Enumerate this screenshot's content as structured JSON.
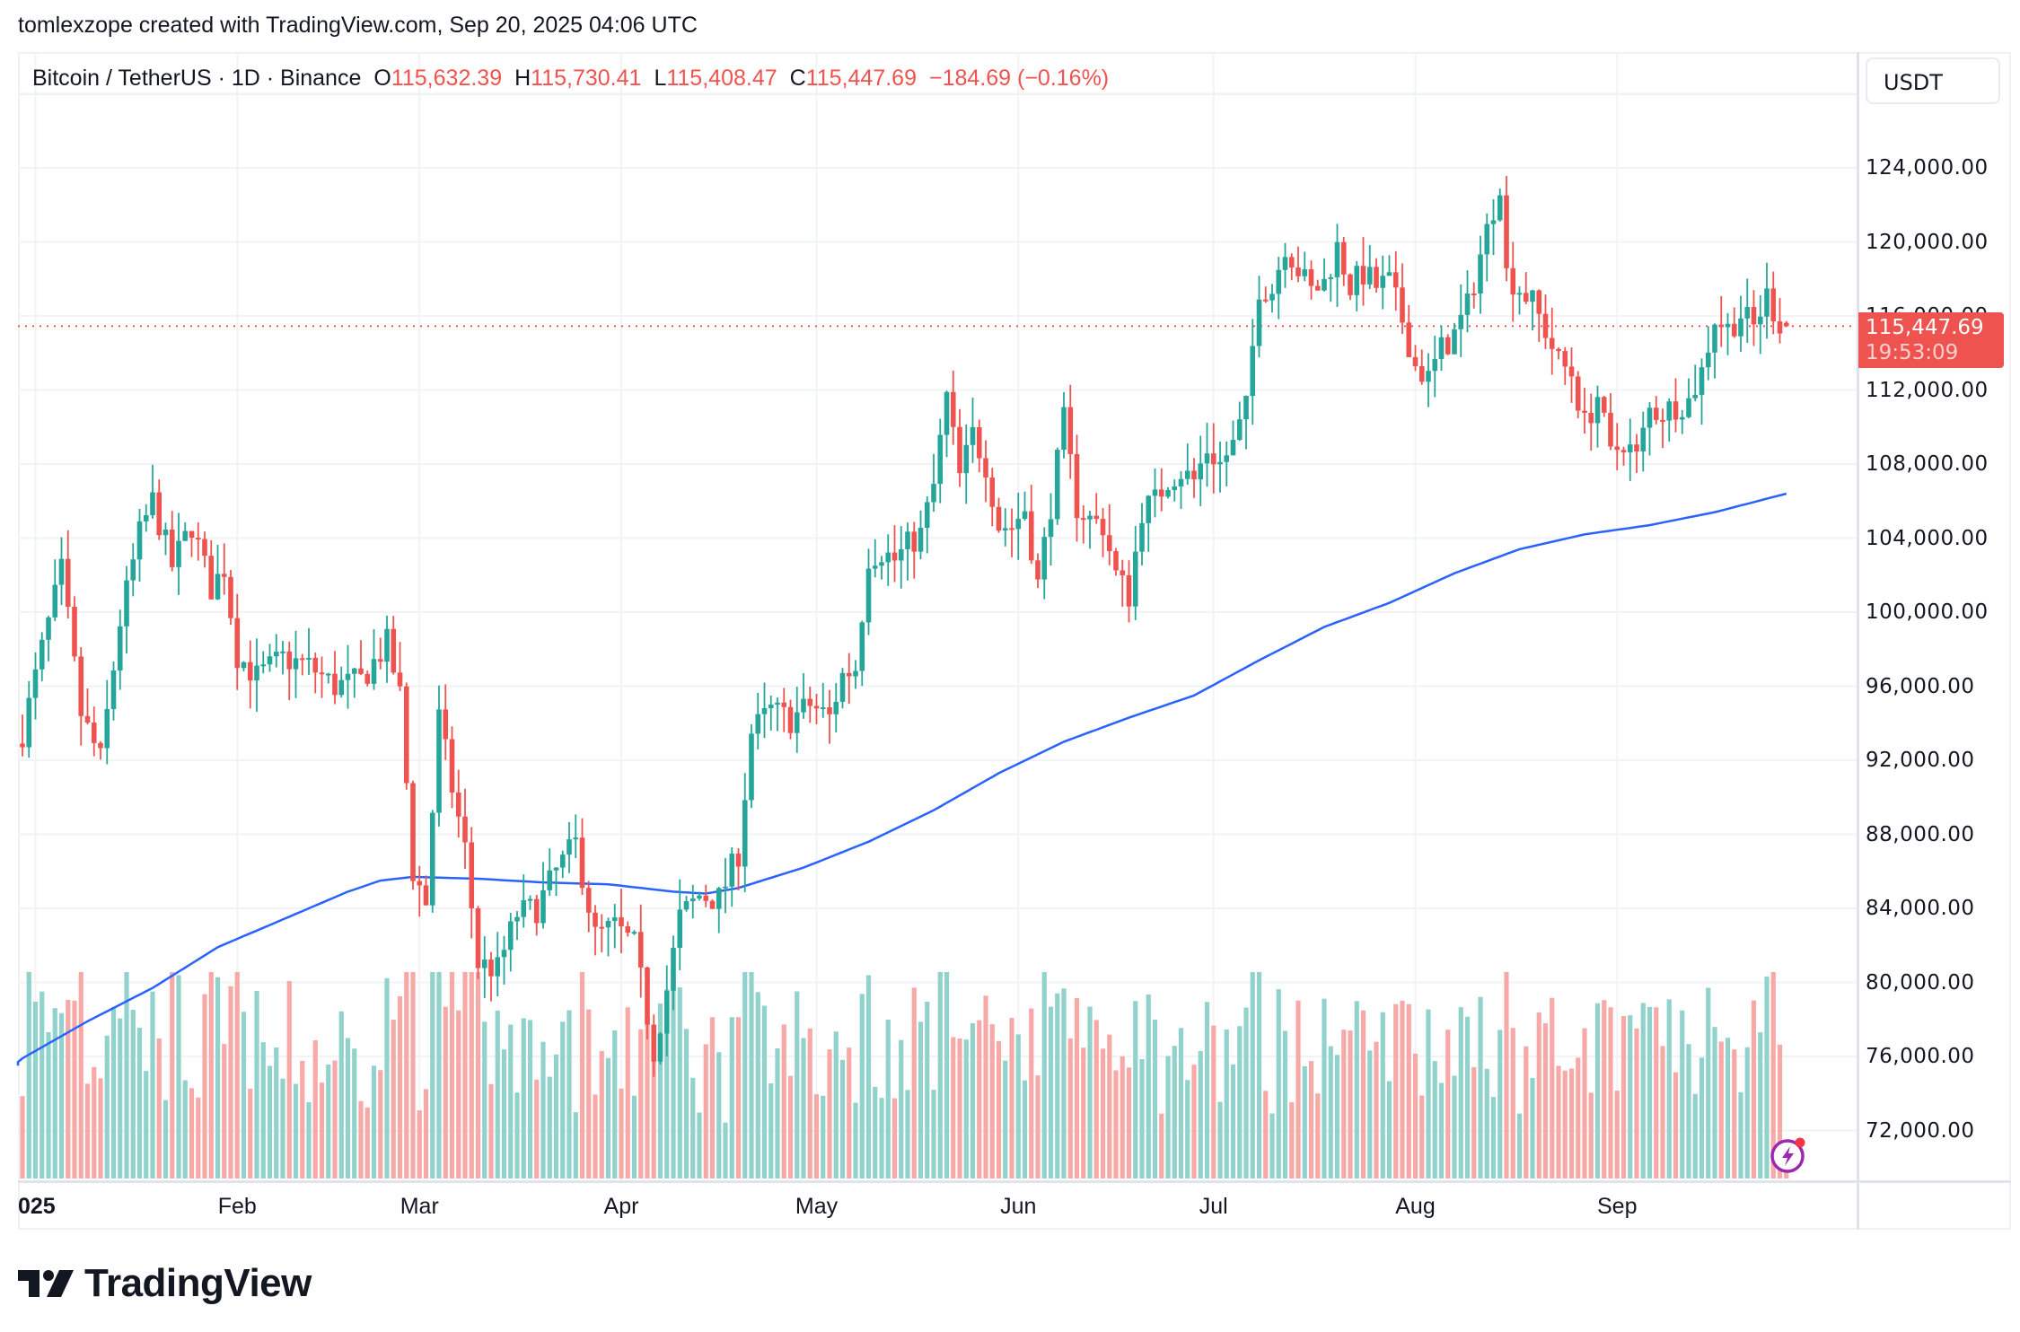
{
  "attribution": "tomlexzope created with TradingView.com, Sep 20, 2025 04:06 UTC",
  "legend": {
    "symbol": "Bitcoin / TetherUS · 1D · Binance",
    "open_label": "O",
    "open": "115,632.39",
    "high_label": "H",
    "high": "115,730.41",
    "low_label": "L",
    "low": "115,408.47",
    "close_label": "C",
    "close": "115,447.69",
    "change": "−184.69 (−0.16%)"
  },
  "currency_button": "USDT",
  "price_tag": {
    "price": "115,447.69",
    "countdown": "19:53:09"
  },
  "brand": {
    "logo_text": "TradingView"
  },
  "colors": {
    "up": "#26a69a",
    "down": "#ef5350",
    "up_vol": "#92d2cc",
    "down_vol": "#f7a9a7",
    "ma": "#2962ff",
    "grid": "#f2f3f5",
    "last_price": "#ef5350",
    "flash": "#9c27b0"
  },
  "chart_data": {
    "type": "candlestick",
    "title": "Bitcoin / TetherUS · 1D · Binance",
    "xlabel": "",
    "ylabel": "USDT",
    "ylim": [
      69000,
      126000
    ],
    "grid": true,
    "y_ticks": [
      "124,000.00",
      "120,000.00",
      "116,000.00",
      "112,000.00",
      "108,000.00",
      "104,000.00",
      "100,000.00",
      "96,000.00",
      "92,000.00",
      "88,000.00",
      "84,000.00",
      "80,000.00",
      "76,000.00",
      "72,000.00"
    ],
    "y_tick_values": [
      124000,
      120000,
      116000,
      112000,
      108000,
      104000,
      100000,
      96000,
      92000,
      88000,
      84000,
      80000,
      76000,
      72000
    ],
    "x_ticks": [
      {
        "label": "2025",
        "day": 2,
        "year": true
      },
      {
        "label": "Feb",
        "day": 33
      },
      {
        "label": "Mar",
        "day": 61
      },
      {
        "label": "Apr",
        "day": 92
      },
      {
        "label": "May",
        "day": 122
      },
      {
        "label": "Jun",
        "day": 153
      },
      {
        "label": "Jul",
        "day": 183
      },
      {
        "label": "Aug",
        "day": 214
      },
      {
        "label": "Sep",
        "day": 245
      }
    ],
    "last_price": 115447.69,
    "close_keypoints": [
      [
        0,
        93500
      ],
      [
        3,
        98000
      ],
      [
        6,
        102200
      ],
      [
        9,
        94500
      ],
      [
        12,
        92000
      ],
      [
        15,
        99500
      ],
      [
        18,
        104200
      ],
      [
        20,
        106000
      ],
      [
        23,
        102500
      ],
      [
        26,
        104700
      ],
      [
        29,
        101300
      ],
      [
        31,
        102400
      ],
      [
        33,
        97700
      ],
      [
        36,
        96500
      ],
      [
        40,
        97500
      ],
      [
        44,
        97100
      ],
      [
        48,
        96000
      ],
      [
        52,
        96300
      ],
      [
        56,
        98300
      ],
      [
        58,
        95500
      ],
      [
        60,
        86000
      ],
      [
        62,
        84300
      ],
      [
        64,
        94300
      ],
      [
        66,
        90500
      ],
      [
        68,
        87200
      ],
      [
        70,
        81000
      ],
      [
        73,
        80700
      ],
      [
        76,
        83700
      ],
      [
        79,
        84000
      ],
      [
        82,
        86000
      ],
      [
        85,
        87500
      ],
      [
        88,
        82500
      ],
      [
        91,
        83000
      ],
      [
        94,
        82000
      ],
      [
        97,
        76300
      ],
      [
        99,
        79600
      ],
      [
        101,
        83500
      ],
      [
        104,
        84700
      ],
      [
        107,
        84500
      ],
      [
        110,
        87000
      ],
      [
        112,
        93500
      ],
      [
        115,
        94700
      ],
      [
        118,
        94200
      ],
      [
        121,
        95000
      ],
      [
        124,
        94300
      ],
      [
        126,
        96600
      ],
      [
        128,
        97000
      ],
      [
        130,
        103000
      ],
      [
        132,
        103300
      ],
      [
        134,
        102800
      ],
      [
        136,
        103600
      ],
      [
        138,
        104200
      ],
      [
        140,
        106800
      ],
      [
        142,
        111600
      ],
      [
        144,
        107300
      ],
      [
        146,
        109600
      ],
      [
        148,
        108000
      ],
      [
        150,
        104700
      ],
      [
        152,
        104600
      ],
      [
        154,
        105600
      ],
      [
        156,
        101500
      ],
      [
        158,
        105800
      ],
      [
        160,
        110300
      ],
      [
        162,
        105700
      ],
      [
        164,
        105000
      ],
      [
        166,
        104700
      ],
      [
        168,
        102000
      ],
      [
        170,
        100900
      ],
      [
        172,
        105500
      ],
      [
        174,
        106000
      ],
      [
        176,
        107200
      ],
      [
        178,
        107600
      ],
      [
        180,
        107100
      ],
      [
        182,
        108800
      ],
      [
        184,
        108000
      ],
      [
        186,
        109000
      ],
      [
        188,
        111000
      ],
      [
        190,
        117600
      ],
      [
        192,
        117400
      ],
      [
        194,
        119900
      ],
      [
        196,
        118500
      ],
      [
        198,
        117300
      ],
      [
        200,
        117800
      ],
      [
        202,
        119700
      ],
      [
        204,
        117600
      ],
      [
        206,
        118300
      ],
      [
        208,
        117600
      ],
      [
        210,
        117800
      ],
      [
        212,
        115800
      ],
      [
        214,
        113300
      ],
      [
        216,
        112600
      ],
      [
        218,
        114200
      ],
      [
        220,
        115000
      ],
      [
        222,
        116500
      ],
      [
        224,
        119300
      ],
      [
        226,
        121900
      ],
      [
        227,
        123300
      ],
      [
        228,
        118300
      ],
      [
        230,
        117500
      ],
      [
        232,
        116700
      ],
      [
        234,
        115200
      ],
      [
        236,
        113500
      ],
      [
        238,
        112900
      ],
      [
        240,
        110100
      ],
      [
        242,
        111700
      ],
      [
        244,
        108400
      ],
      [
        246,
        109300
      ],
      [
        248,
        108300
      ],
      [
        250,
        110900
      ],
      [
        252,
        110800
      ],
      [
        254,
        111200
      ],
      [
        256,
        111400
      ],
      [
        258,
        113000
      ],
      [
        260,
        115900
      ],
      [
        262,
        115300
      ],
      [
        264,
        116100
      ],
      [
        266,
        115400
      ],
      [
        268,
        117100
      ],
      [
        270,
        115600
      ],
      [
        271,
        115447
      ]
    ],
    "ma_keypoints": [
      [
        -2,
        75500
      ],
      [
        10,
        77900
      ],
      [
        20,
        79700
      ],
      [
        30,
        81900
      ],
      [
        40,
        83400
      ],
      [
        50,
        84900
      ],
      [
        55,
        85500
      ],
      [
        60,
        85700
      ],
      [
        70,
        85600
      ],
      [
        80,
        85400
      ],
      [
        90,
        85300
      ],
      [
        100,
        84900
      ],
      [
        105,
        84800
      ],
      [
        110,
        85100
      ],
      [
        120,
        86200
      ],
      [
        130,
        87600
      ],
      [
        140,
        89300
      ],
      [
        150,
        91300
      ],
      [
        160,
        93000
      ],
      [
        170,
        94300
      ],
      [
        180,
        95500
      ],
      [
        190,
        97400
      ],
      [
        200,
        99200
      ],
      [
        210,
        100500
      ],
      [
        220,
        102100
      ],
      [
        230,
        103400
      ],
      [
        240,
        104200
      ],
      [
        250,
        104700
      ],
      [
        260,
        105400
      ],
      [
        271,
        106400
      ]
    ],
    "volume_scale_note": "volume bars relative heights, unlabeled pane"
  }
}
